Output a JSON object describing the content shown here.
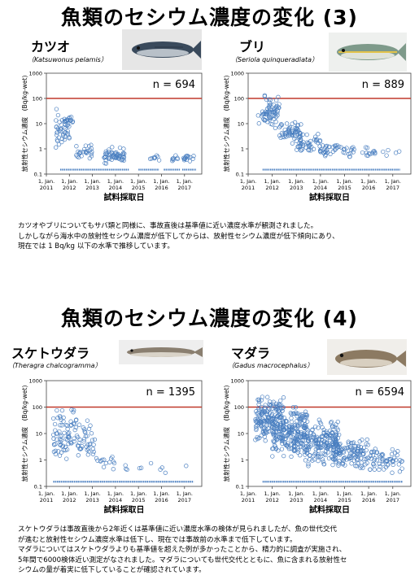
{
  "page": {
    "section3_title": "魚類のセシウム濃度の変化 (3)",
    "section4_title": "魚類のセシウム濃度の変化 (4)",
    "desc3": [
      "カツオやブリについてもサバ類と同様に、事故直後は基準値に近い濃度水準が観測されました。",
      "しかしながら海水中の放射性セシウム濃度が低下してからは、放射性セシウム濃度が低下傾向にあり、",
      "現在では 1 Bq/kg 以下の水準で推移しています。"
    ],
    "desc4": [
      "スケトウダラは事故直後から2年近くは基準値に近い濃度水準の検体が見られましたが、魚の世代交代",
      "が進むと放射性セシウム濃度水準は低下し、現在では事故前の水準まで低下しています。",
      "マダラについてはスケトウダラよりも基準値を超えた例が多かったことから、精力的に調査が実施され、",
      "5年間で6000検体近い測定がなされました。マダラについても世代交代とともに、魚に含まれる放射性セ",
      "シウムの量が着実に低下していることが確認されています。"
    ]
  },
  "colors": {
    "points": "#4a7fc0",
    "reference_line": "#c0392b",
    "axis": "#444444"
  },
  "chart_data": [
    {
      "id": "katsuo",
      "type": "scatter",
      "fish_name": "カツオ",
      "fish_latin": "（Katsuwonus pelamis）",
      "n_label": "n = 694",
      "ylabel": "放射性セシウム濃度　(Bq/kg-wet)",
      "xlabel": "試料採取日",
      "y_scale": "log",
      "ylim": [
        0.1,
        1000
      ],
      "y_ticks": [
        "1000",
        "100",
        "10",
        "1",
        "0.1"
      ],
      "xlim": [
        2011.0,
        2017.75
      ],
      "x_ticks": [
        "1, Jan.\n2011",
        "1, Jan.\n2012",
        "1, Jan.\n2013",
        "1, Jan.\n2014",
        "1, Jan.\n2015",
        "1, Jan.\n2016",
        "1, Jan.\n2017"
      ],
      "reference_line": 100,
      "clusters": [
        {
          "x": [
            2011.4,
            2012.0
          ],
          "y": [
            0.6,
            40
          ],
          "n": 40
        },
        {
          "x": [
            2011.75,
            2012.15
          ],
          "y": [
            8,
            20
          ],
          "n": 18
        },
        {
          "x": [
            2012.3,
            2013.0
          ],
          "y": [
            0.3,
            2
          ],
          "n": 25
        },
        {
          "x": [
            2013.5,
            2014.4
          ],
          "y": [
            0.25,
            1.2
          ],
          "n": 55
        },
        {
          "x": [
            2015.4,
            2015.9
          ],
          "y": [
            0.3,
            0.6
          ],
          "n": 8
        },
        {
          "x": [
            2016.4,
            2016.8
          ],
          "y": [
            0.3,
            0.6
          ],
          "n": 8
        },
        {
          "x": [
            2016.9,
            2017.5
          ],
          "y": [
            0.3,
            0.6
          ],
          "n": 14
        }
      ],
      "nd_segments": [
        [
          2011.6,
          2014.6
        ],
        [
          2015.0,
          2015.9
        ],
        [
          2016.1,
          2016.8
        ],
        [
          2016.9,
          2017.5
        ]
      ]
    },
    {
      "id": "buri",
      "type": "scatter",
      "fish_name": "ブリ",
      "fish_latin": "（Seriola quinqueradiata）",
      "n_label": "n = 889",
      "ylabel": "放射性セシウム濃度　(Bq/kg-wet)",
      "xlabel": "試料採取日",
      "y_scale": "log",
      "ylim": [
        0.1,
        1000
      ],
      "y_ticks": [
        "1000",
        "100",
        "10",
        "1",
        "0.1"
      ],
      "xlim": [
        2011.0,
        2017.75
      ],
      "x_ticks": [
        "1, Jan.\n2011",
        "1, Jan.\n2012",
        "1, Jan.\n2013",
        "1, Jan.\n2014",
        "1, Jan.\n2015",
        "1, Jan.\n2016",
        "1, Jan.\n2017"
      ],
      "reference_line": 100,
      "clusters": [
        {
          "x": [
            2011.6,
            2012.3
          ],
          "y": [
            5,
            150
          ],
          "n": 60
        },
        {
          "x": [
            2011.4,
            2011.7
          ],
          "y": [
            6,
            40
          ],
          "n": 6
        },
        {
          "x": [
            2012.3,
            2013.2
          ],
          "y": [
            1.5,
            15
          ],
          "n": 60
        },
        {
          "x": [
            2013.0,
            2014.0
          ],
          "y": [
            0.5,
            4
          ],
          "n": 45
        },
        {
          "x": [
            2014.0,
            2015.0
          ],
          "y": [
            0.4,
            2
          ],
          "n": 30
        },
        {
          "x": [
            2015.0,
            2016.0
          ],
          "y": [
            0.4,
            1.5
          ],
          "n": 18
        },
        {
          "x": [
            2016.0,
            2017.3
          ],
          "y": [
            0.4,
            1.2
          ],
          "n": 12
        }
      ],
      "nd_segments": [
        [
          2011.6,
          2017.3
        ]
      ]
    },
    {
      "id": "suketoudara",
      "type": "scatter",
      "fish_name": "スケトウダラ",
      "fish_latin": "（Theragra chalcogramma）",
      "n_label": "n = 1395",
      "ylabel": "放射性セシウム濃度　(Bq/kg-wet)",
      "xlabel": "試料採取日",
      "y_scale": "log",
      "ylim": [
        0.1,
        1000
      ],
      "y_ticks": [
        "1000",
        "100",
        "10",
        "1",
        "0.1"
      ],
      "xlim": [
        2011.0,
        2017.75
      ],
      "x_ticks": [
        "1, Jan.\n2011",
        "1, Jan.\n2012",
        "1, Jan.\n2013",
        "1, Jan.\n2014",
        "1, Jan.\n2015",
        "1, Jan.\n2016",
        "1, Jan.\n2017"
      ],
      "reference_line": 100,
      "clusters": [
        {
          "x": [
            2011.3,
            2012.3
          ],
          "y": [
            0.8,
            90
          ],
          "n": 70
        },
        {
          "x": [
            2012.2,
            2013.1
          ],
          "y": [
            0.6,
            60
          ],
          "n": 40
        },
        {
          "x": [
            2013.0,
            2014.0
          ],
          "y": [
            0.4,
            2
          ],
          "n": 14
        },
        {
          "x": [
            2014.0,
            2017.4
          ],
          "y": [
            0.3,
            0.8
          ],
          "n": 10
        }
      ],
      "nd_segments": [
        [
          2011.3,
          2017.4
        ]
      ]
    },
    {
      "id": "madara",
      "type": "scatter",
      "fish_name": "マダラ",
      "fish_latin": "（Gadus macrocephalus）",
      "n_label": "n = 6594",
      "ylabel": "放射性セシウム濃度　(Bq/kg-wet)",
      "xlabel": "試料採取日",
      "y_scale": "log",
      "ylim": [
        0.1,
        1000
      ],
      "y_ticks": [
        "1000",
        "100",
        "10",
        "1",
        "0.1"
      ],
      "xlim": [
        2011.0,
        2017.75
      ],
      "x_ticks": [
        "1, Jan.\n2011",
        "1, Jan.\n2012",
        "1, Jan.\n2013",
        "1, Jan.\n2014",
        "1, Jan.\n2015",
        "1, Jan.\n2016",
        "1, Jan.\n2017"
      ],
      "reference_line": 100,
      "clusters": [
        {
          "x": [
            2011.3,
            2012.5
          ],
          "y": [
            3,
            300
          ],
          "n": 160
        },
        {
          "x": [
            2012.0,
            2013.5
          ],
          "y": [
            1,
            120
          ],
          "n": 220
        },
        {
          "x": [
            2013.3,
            2014.8
          ],
          "y": [
            0.5,
            40
          ],
          "n": 180
        },
        {
          "x": [
            2014.5,
            2016.0
          ],
          "y": [
            0.4,
            8
          ],
          "n": 110
        },
        {
          "x": [
            2016.0,
            2017.4
          ],
          "y": [
            0.3,
            3
          ],
          "n": 60
        }
      ],
      "nd_segments": [
        [
          2011.6,
          2017.4
        ]
      ]
    }
  ]
}
